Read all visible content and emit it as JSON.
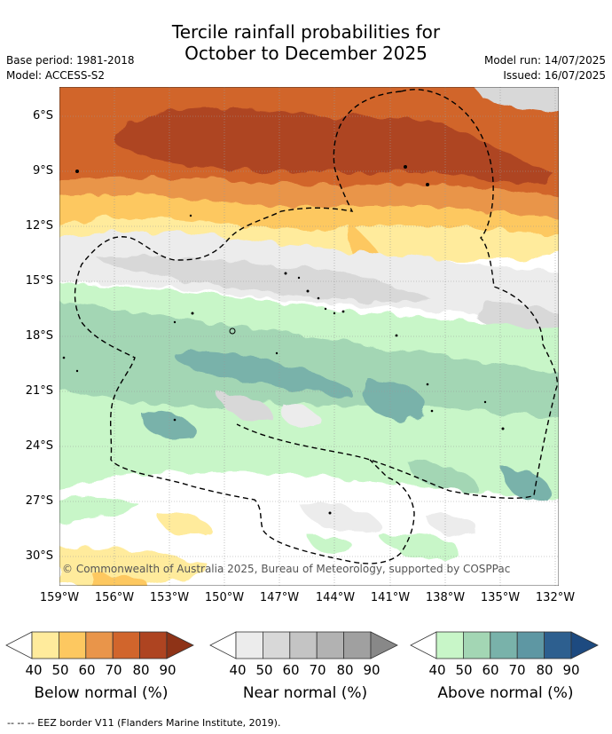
{
  "title_line1": "Tercile rainfall probabilities for",
  "title_line2": "October to December 2025",
  "base_period": "Base period: 1981-2018",
  "model": "Model: ACCESS-S2",
  "model_run": "Model run: 14/07/2025",
  "issued": "Issued: 16/07/2025",
  "lat_labels": [
    "6°S",
    "9°S",
    "12°S",
    "15°S",
    "18°S",
    "21°S",
    "24°S",
    "27°S",
    "30°S"
  ],
  "lon_labels": [
    "159°W",
    "156°W",
    "153°W",
    "150°W",
    "147°W",
    "144°W",
    "141°W",
    "138°W",
    "135°W",
    "132°W"
  ],
  "copyright": "© Commonwealth of Australia 2025, Bureau of Meteorology, supported by COSPPac",
  "colorbars": [
    {
      "title": "Below normal (%)",
      "ticks": [
        "40",
        "50",
        "60",
        "70",
        "80",
        "90"
      ],
      "colors": [
        "#fff",
        "#ffeb9c",
        "#fdc860",
        "#e9954a",
        "#d1652c",
        "#ae4421",
        "#8e3317"
      ]
    },
    {
      "title": "Near normal (%)",
      "ticks": [
        "40",
        "50",
        "60",
        "70",
        "80",
        "90"
      ],
      "colors": [
        "#fff",
        "#ececec",
        "#d8d8d8",
        "#c4c4c4",
        "#b2b2b2",
        "#a0a0a0",
        "#888888"
      ]
    },
    {
      "title": "Above normal (%)",
      "ticks": [
        "40",
        "50",
        "60",
        "70",
        "80",
        "90"
      ],
      "colors": [
        "#fff",
        "#c8f6c8",
        "#a3d6b4",
        "#79b2aa",
        "#5e97a3",
        "#2d5f8f",
        "#1d4a80"
      ]
    }
  ],
  "footer": "--  --  -- EEZ border V11 (Flanders Marine Institute, 2019)."
}
